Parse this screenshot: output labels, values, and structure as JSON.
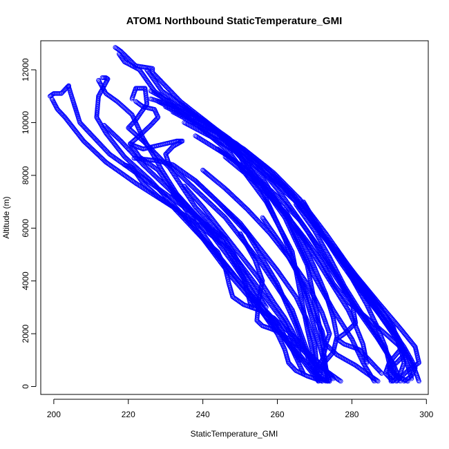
{
  "chart_data": {
    "type": "scatter",
    "title": "ATOM1 Northbound StaticTemperature_GMI",
    "xlabel": "StaticTemperature_GMI",
    "ylabel": "Altitude (m)",
    "xlim": [
      196.5,
      300.5
    ],
    "ylim": [
      -300,
      13100
    ],
    "x_ticks": [
      200,
      220,
      240,
      260,
      280,
      300
    ],
    "y_ticks": [
      0,
      2000,
      4000,
      6000,
      8000,
      10000,
      12000
    ],
    "x_tick_labels": [
      "200",
      "220",
      "240",
      "260",
      "280",
      "300"
    ],
    "y_tick_labels": [
      "0",
      "2000",
      "4000",
      "6000",
      "8000",
      "10000",
      "12000"
    ],
    "grid": false,
    "marker": "open-circle",
    "color": "#0000ff",
    "series": [
      {
        "x": [
          216.5,
          218,
          222,
          226.5,
          226.5,
          234,
          244,
          252,
          262,
          268,
          272,
          273.5
        ],
        "y": [
          12850,
          12700,
          12150,
          12050,
          11900,
          10800,
          9700,
          8400,
          6400,
          4600,
          1800,
          200
        ]
      },
      {
        "x": [
          217.5,
          219,
          223,
          227,
          236,
          247,
          257,
          264,
          268,
          271
        ],
        "y": [
          12600,
          12300,
          12000,
          11200,
          10200,
          8900,
          7000,
          5100,
          2200,
          300
        ]
      },
      {
        "x": [
          199,
          200,
          202,
          204,
          204,
          207,
          215,
          225,
          237,
          246,
          254,
          262,
          266,
          270,
          273
        ],
        "y": [
          11000,
          11100,
          11100,
          11400,
          11350,
          10000,
          8800,
          7800,
          6600,
          5400,
          3900,
          2400,
          1200,
          500,
          200
        ]
      },
      {
        "x": [
          199.5,
          201,
          203,
          208,
          214,
          222,
          232,
          240,
          248,
          256,
          264,
          271
        ],
        "y": [
          10900,
          10500,
          10200,
          9300,
          8500,
          7700,
          6800,
          5600,
          4100,
          2800,
          1500,
          200
        ]
      },
      {
        "x": [
          213,
          214,
          214.5,
          212,
          211.5,
          214,
          219,
          226,
          236,
          246,
          254,
          260,
          264,
          267
        ],
        "y": [
          11700,
          11700,
          11650,
          11000,
          10200,
          9600,
          8700,
          7800,
          6300,
          4600,
          3300,
          2400,
          1400,
          500
        ]
      },
      {
        "x": [
          212,
          214,
          217,
          221,
          224,
          227,
          229,
          233,
          240,
          246,
          252,
          257
        ],
        "y": [
          11600,
          11100,
          10800,
          10300,
          9400,
          8700,
          8200,
          7300,
          6200,
          5600,
          4100,
          3000
        ]
      },
      {
        "x": [
          221,
          222,
          224.5,
          225,
          222,
          220,
          224,
          231,
          238,
          246
        ],
        "y": [
          10900,
          11300,
          11300,
          10700,
          10100,
          9800,
          9300,
          8300,
          6800,
          5600
        ]
      },
      {
        "x": [
          222,
          224,
          227,
          228,
          226,
          223,
          220.5,
          223,
          228,
          232,
          240,
          248,
          256,
          262,
          266
        ],
        "y": [
          10800,
          10600,
          10500,
          10200,
          9900,
          9500,
          9200,
          8700,
          8200,
          7400,
          6200,
          4700,
          3000,
          1800,
          1000
        ]
      },
      {
        "x": [
          220.5,
          222,
          224,
          227,
          230,
          233,
          234.5,
          232,
          230,
          231,
          237,
          246,
          256,
          264,
          271
        ],
        "y": [
          9200,
          9100,
          9000,
          9100,
          9200,
          9300,
          9300,
          9100,
          8800,
          8400,
          7600,
          6400,
          4600,
          2900,
          200
        ]
      },
      {
        "x": [
          221.5,
          225,
          228,
          232,
          238,
          244,
          252,
          260,
          265,
          269
        ],
        "y": [
          8650,
          8600,
          8550,
          8400,
          7800,
          7000,
          5800,
          3900,
          2300,
          800
        ]
      },
      {
        "x": [
          219,
          221,
          224,
          228,
          234,
          240,
          246,
          251,
          253
        ],
        "y": [
          8400,
          8300,
          7700,
          7200,
          6600,
          6000,
          5300,
          4100,
          3000
        ]
      },
      {
        "x": [
          213.5,
          218,
          224,
          230,
          236,
          241,
          244
        ],
        "y": [
          9900,
          9300,
          8400,
          7600,
          6800,
          6100,
          5600
        ]
      },
      {
        "x": [
          225,
          229,
          233,
          238,
          244,
          250,
          256,
          262,
          267,
          271,
          274
        ],
        "y": [
          12000,
          11200,
          10800,
          10300,
          9600,
          8700,
          7400,
          5600,
          3700,
          1700,
          200
        ]
      },
      {
        "x": [
          226,
          231,
          236,
          242,
          249,
          256,
          263,
          269,
          275,
          280,
          283,
          286
        ],
        "y": [
          11200,
          10800,
          10400,
          9900,
          9000,
          7900,
          6300,
          4400,
          2900,
          1800,
          900,
          200
        ]
      },
      {
        "x": [
          226,
          233,
          240,
          247,
          254,
          261,
          268,
          275,
          281,
          287,
          291,
          293
        ],
        "y": [
          10900,
          10600,
          10100,
          9400,
          8500,
          7300,
          5900,
          4300,
          3000,
          1800,
          900,
          200
        ]
      },
      {
        "x": [
          228,
          235,
          242,
          249,
          257,
          264,
          271,
          278,
          285,
          290,
          294,
          297,
          298
        ],
        "y": [
          10800,
          10300,
          9800,
          9200,
          8300,
          7300,
          6000,
          4600,
          3300,
          2200,
          1400,
          600,
          200
        ]
      },
      {
        "x": [
          230,
          237,
          244,
          251,
          259,
          266,
          273,
          280,
          287,
          293,
          297,
          298,
          295,
          292
        ],
        "y": [
          10600,
          10100,
          9600,
          9000,
          8100,
          7100,
          5800,
          4400,
          3200,
          2200,
          1500,
          900,
          600,
          200
        ]
      },
      {
        "x": [
          232,
          240,
          248,
          255,
          262,
          269,
          276,
          283,
          289,
          293,
          296
        ],
        "y": [
          10400,
          9800,
          9200,
          8400,
          7500,
          6300,
          5000,
          3800,
          2700,
          1700,
          300
        ]
      },
      {
        "x": [
          235,
          243,
          251,
          258,
          265,
          272,
          279,
          286,
          291,
          293,
          290,
          289,
          291
        ],
        "y": [
          10000,
          9400,
          8700,
          7900,
          7000,
          5800,
          4600,
          3300,
          2300,
          1400,
          900,
          500,
          200
        ]
      },
      {
        "x": [
          238,
          246,
          253,
          260,
          266,
          271,
          276,
          280,
          281,
          278,
          276,
          278,
          282,
          288
        ],
        "y": [
          9500,
          8800,
          8100,
          7200,
          6300,
          5300,
          4200,
          3200,
          2400,
          2000,
          1800,
          1600,
          1400,
          500
        ]
      },
      {
        "x": [
          244,
          250,
          256,
          262,
          267,
          271,
          275,
          279,
          281,
          283,
          284
        ],
        "y": [
          9000,
          8400,
          7600,
          6600,
          5600,
          4700,
          3800,
          2900,
          2300,
          1600,
          900
        ]
      },
      {
        "x": [
          246,
          252,
          258,
          263,
          268,
          272,
          275,
          279,
          284,
          289,
          293,
          294,
          293,
          291
        ],
        "y": [
          8700,
          8000,
          7200,
          6400,
          5500,
          4700,
          3900,
          3200,
          2600,
          2000,
          1500,
          900,
          500,
          200
        ]
      },
      {
        "x": [
          240,
          246,
          252,
          258,
          263,
          268,
          272,
          274,
          273,
          276,
          281,
          285,
          287
        ],
        "y": [
          8200,
          7500,
          6700,
          5800,
          4900,
          3900,
          2800,
          2000,
          1600,
          1200,
          800,
          400,
          200
        ]
      },
      {
        "x": [
          238,
          244,
          250,
          255,
          260,
          265,
          268,
          270,
          270.5,
          270,
          271,
          272
        ],
        "y": [
          7800,
          7000,
          6200,
          5300,
          4400,
          3400,
          2500,
          1600,
          900,
          600,
          400,
          200
        ]
      },
      {
        "x": [
          235,
          240,
          245,
          250,
          255,
          259,
          262,
          264,
          266,
          270,
          274,
          277
        ],
        "y": [
          7600,
          6800,
          5900,
          5000,
          4100,
          3200,
          2600,
          2100,
          1500,
          900,
          500,
          200
        ]
      },
      {
        "x": [
          232,
          236,
          240,
          244,
          248,
          252,
          256,
          260,
          262,
          263,
          265,
          268,
          272
        ],
        "y": [
          7300,
          6600,
          5800,
          5000,
          4300,
          3600,
          2800,
          2000,
          1400,
          900,
          600,
          400,
          200
        ]
      },
      {
        "x": [
          240,
          244,
          246,
          247,
          248,
          251,
          255,
          259,
          262,
          266,
          269,
          271,
          272.5,
          273.5
        ],
        "y": [
          5600,
          5100,
          4500,
          3900,
          3400,
          3100,
          2900,
          2600,
          2200,
          1700,
          1100,
          700,
          500,
          200
        ]
      },
      {
        "x": [
          250,
          254,
          256,
          255,
          254.5,
          256,
          260,
          264,
          268,
          272,
          275
        ],
        "y": [
          5800,
          4800,
          4000,
          3300,
          2500,
          2300,
          2100,
          1700,
          1300,
          800,
          300
        ]
      },
      {
        "x": [
          256,
          261,
          265,
          268,
          270,
          272,
          273,
          272,
          270,
          271,
          274
        ],
        "y": [
          6400,
          5400,
          4400,
          3500,
          2700,
          2100,
          1500,
          1000,
          600,
          300,
          200
        ]
      },
      {
        "x": [
          262,
          266,
          270,
          273,
          275,
          276,
          275,
          272,
          271
        ],
        "y": [
          6700,
          5700,
          4500,
          3500,
          2600,
          1900,
          1300,
          800,
          200
        ]
      },
      {
        "x": [
          265,
          270,
          274,
          278,
          282,
          286,
          289,
          291,
          292
        ],
        "y": [
          6900,
          5900,
          4900,
          3800,
          2900,
          2100,
          1400,
          800,
          200
        ]
      },
      {
        "x": [
          267,
          272,
          277,
          282,
          287,
          291,
          294,
          296,
          297,
          296,
          294
        ],
        "y": [
          7000,
          5800,
          4700,
          3700,
          2800,
          2100,
          1500,
          1000,
          700,
          400,
          200
        ]
      },
      {
        "x": [
          278,
          283,
          288,
          292,
          294,
          292,
          290,
          292,
          295
        ],
        "y": [
          4600,
          3600,
          2600,
          1800,
          1200,
          900,
          700,
          400,
          200
        ]
      },
      {
        "x": [
          276,
          280,
          284,
          287,
          289,
          290,
          290.5
        ],
        "y": [
          5200,
          4100,
          3100,
          2200,
          1500,
          900,
          200
        ]
      }
    ]
  }
}
